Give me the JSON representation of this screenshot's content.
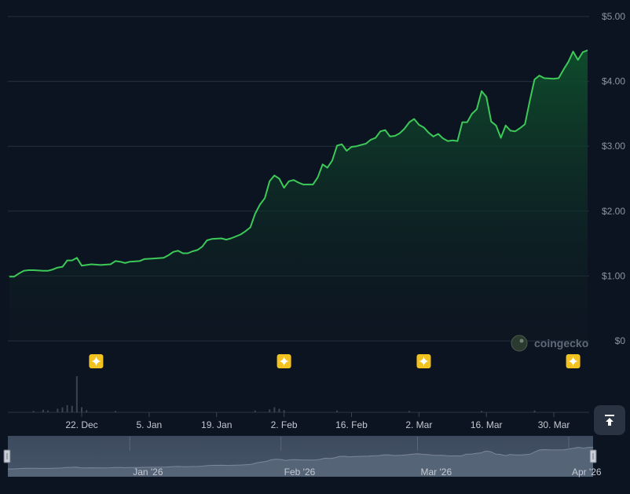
{
  "chart_data": {
    "type": "area",
    "y_unit_prefix": "$",
    "ylim": [
      0,
      5
    ],
    "y_ticks": [
      "$0",
      "$1.00",
      "$2.00",
      "$3.00",
      "$4.00",
      "$5.00"
    ],
    "y_tick_values": [
      0,
      1,
      2,
      3,
      4,
      5
    ],
    "x_tick_labels": [
      "22. Dec",
      "5. Jan",
      "19. Jan",
      "2. Feb",
      "16. Feb",
      "2. Mar",
      "16. Mar",
      "30. Mar"
    ],
    "x_tick_dates": [
      "2025-12-22",
      "2026-01-05",
      "2026-01-19",
      "2026-02-02",
      "2026-02-16",
      "2026-03-02",
      "2026-03-16",
      "2026-03-30"
    ],
    "x_range": [
      "2025-12-07",
      "2026-04-06"
    ],
    "grid": true,
    "series": [
      {
        "color": "#3cc958",
        "points": [
          [
            "2025-12-07",
            0.99
          ],
          [
            "2025-12-08",
            0.99
          ],
          [
            "2025-12-09",
            1.04
          ],
          [
            "2025-12-10",
            1.08
          ],
          [
            "2025-12-11",
            1.09
          ],
          [
            "2025-12-12",
            1.09
          ],
          [
            "2025-12-14",
            1.08
          ],
          [
            "2025-12-15",
            1.08
          ],
          [
            "2025-12-16",
            1.1
          ],
          [
            "2025-12-17",
            1.13
          ],
          [
            "2025-12-18",
            1.14
          ],
          [
            "2025-12-19",
            1.24
          ],
          [
            "2025-12-20",
            1.24
          ],
          [
            "2025-12-21",
            1.28
          ],
          [
            "2025-12-22",
            1.16
          ],
          [
            "2025-12-23",
            1.17
          ],
          [
            "2025-12-24",
            1.18
          ],
          [
            "2025-12-26",
            1.17
          ],
          [
            "2025-12-28",
            1.18
          ],
          [
            "2025-12-29",
            1.23
          ],
          [
            "2025-12-30",
            1.22
          ],
          [
            "2025-12-31",
            1.2
          ],
          [
            "2026-01-01",
            1.22
          ],
          [
            "2026-01-03",
            1.23
          ],
          [
            "2026-01-04",
            1.26
          ],
          [
            "2026-01-06",
            1.27
          ],
          [
            "2026-01-08",
            1.28
          ],
          [
            "2026-01-09",
            1.32
          ],
          [
            "2026-01-10",
            1.37
          ],
          [
            "2026-01-11",
            1.39
          ],
          [
            "2026-01-12",
            1.35
          ],
          [
            "2026-01-13",
            1.35
          ],
          [
            "2026-01-14",
            1.38
          ],
          [
            "2026-01-15",
            1.4
          ],
          [
            "2026-01-16",
            1.45
          ],
          [
            "2026-01-17",
            1.55
          ],
          [
            "2026-01-18",
            1.57
          ],
          [
            "2026-01-20",
            1.58
          ],
          [
            "2026-01-21",
            1.56
          ],
          [
            "2026-01-22",
            1.58
          ],
          [
            "2026-01-23",
            1.61
          ],
          [
            "2026-01-24",
            1.64
          ],
          [
            "2026-01-25",
            1.69
          ],
          [
            "2026-01-26",
            1.75
          ],
          [
            "2026-01-27",
            1.96
          ],
          [
            "2026-01-28",
            2.1
          ],
          [
            "2026-01-29",
            2.2
          ],
          [
            "2026-01-30",
            2.46
          ],
          [
            "2026-01-31",
            2.55
          ],
          [
            "2026-02-01",
            2.5
          ],
          [
            "2026-02-02",
            2.36
          ],
          [
            "2026-02-03",
            2.46
          ],
          [
            "2026-02-04",
            2.48
          ],
          [
            "2026-02-05",
            2.44
          ],
          [
            "2026-02-06",
            2.41
          ],
          [
            "2026-02-08",
            2.41
          ],
          [
            "2026-02-09",
            2.52
          ],
          [
            "2026-02-10",
            2.72
          ],
          [
            "2026-02-11",
            2.67
          ],
          [
            "2026-02-12",
            2.78
          ],
          [
            "2026-02-13",
            3.01
          ],
          [
            "2026-02-14",
            3.03
          ],
          [
            "2026-02-15",
            2.93
          ],
          [
            "2026-02-16",
            2.99
          ],
          [
            "2026-02-17",
            3.0
          ],
          [
            "2026-02-19",
            3.04
          ],
          [
            "2026-02-20",
            3.1
          ],
          [
            "2026-02-21",
            3.13
          ],
          [
            "2026-02-22",
            3.23
          ],
          [
            "2026-02-23",
            3.25
          ],
          [
            "2026-02-24",
            3.15
          ],
          [
            "2026-02-25",
            3.16
          ],
          [
            "2026-02-26",
            3.2
          ],
          [
            "2026-02-27",
            3.27
          ],
          [
            "2026-02-28",
            3.37
          ],
          [
            "2026-03-01",
            3.42
          ],
          [
            "2026-03-02",
            3.33
          ],
          [
            "2026-03-03",
            3.29
          ],
          [
            "2026-03-04",
            3.21
          ],
          [
            "2026-03-05",
            3.15
          ],
          [
            "2026-03-06",
            3.19
          ],
          [
            "2026-03-07",
            3.12
          ],
          [
            "2026-03-08",
            3.08
          ],
          [
            "2026-03-09",
            3.09
          ],
          [
            "2026-03-10",
            3.08
          ],
          [
            "2026-03-11",
            3.37
          ],
          [
            "2026-03-12",
            3.37
          ],
          [
            "2026-03-13",
            3.5
          ],
          [
            "2026-03-14",
            3.57
          ],
          [
            "2026-03-15",
            3.85
          ],
          [
            "2026-03-16",
            3.76
          ],
          [
            "2026-03-17",
            3.38
          ],
          [
            "2026-03-18",
            3.32
          ],
          [
            "2026-03-19",
            3.13
          ],
          [
            "2026-03-20",
            3.32
          ],
          [
            "2026-03-21",
            3.24
          ],
          [
            "2026-03-22",
            3.23
          ],
          [
            "2026-03-23",
            3.28
          ],
          [
            "2026-03-24",
            3.34
          ],
          [
            "2026-03-25",
            3.7
          ],
          [
            "2026-03-26",
            4.03
          ],
          [
            "2026-03-27",
            4.09
          ],
          [
            "2026-03-28",
            4.05
          ],
          [
            "2026-03-30",
            4.04
          ],
          [
            "2026-03-31",
            4.05
          ],
          [
            "2026-04-01",
            4.18
          ],
          [
            "2026-04-02",
            4.3
          ],
          [
            "2026-04-03",
            4.46
          ],
          [
            "2026-04-04",
            4.33
          ],
          [
            "2026-04-05",
            4.45
          ],
          [
            "2026-04-06",
            4.48
          ]
        ]
      }
    ],
    "volume": {
      "color": "#3a4353",
      "points": [
        [
          "2025-12-12",
          0.04
        ],
        [
          "2025-12-14",
          0.07
        ],
        [
          "2025-12-15",
          0.05
        ],
        [
          "2025-12-17",
          0.1
        ],
        [
          "2025-12-18",
          0.14
        ],
        [
          "2025-12-19",
          0.2
        ],
        [
          "2025-12-20",
          0.18
        ],
        [
          "2025-12-21",
          1.0
        ],
        [
          "2025-12-22",
          0.14
        ],
        [
          "2025-12-23",
          0.06
        ],
        [
          "2025-12-29",
          0.04
        ],
        [
          "2026-01-27",
          0.05
        ],
        [
          "2026-01-30",
          0.08
        ],
        [
          "2026-01-31",
          0.14
        ],
        [
          "2026-02-01",
          0.1
        ],
        [
          "2026-02-02",
          0.06
        ],
        [
          "2026-02-13",
          0.05
        ],
        [
          "2026-02-28",
          0.04
        ],
        [
          "2026-03-15",
          0.04
        ],
        [
          "2026-03-26",
          0.05
        ]
      ]
    },
    "event_markers": [
      "2025-12-25",
      "2026-02-02",
      "2026-03-03",
      "2026-04-03"
    ],
    "navigator": {
      "labels": [
        "Jan '26",
        "Feb '26",
        "Mar '26",
        "Apr '26"
      ]
    }
  },
  "watermark": {
    "label": "coingecko"
  }
}
